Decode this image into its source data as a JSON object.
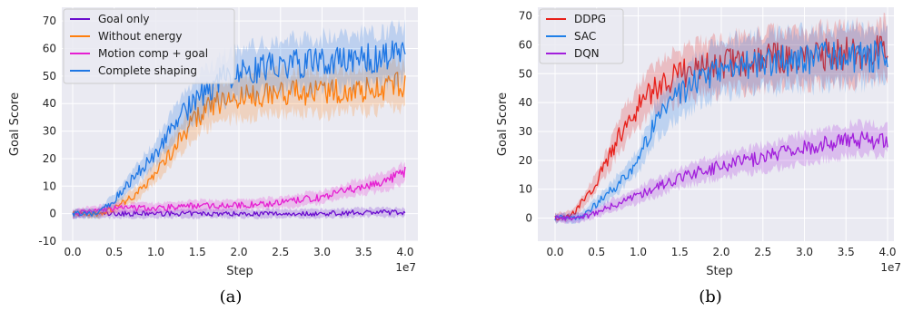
{
  "chart_data": [
    {
      "type": "line",
      "xlabel": "Step",
      "ylabel": "Goal Score",
      "x_exponent_label": "1e7",
      "caption": "(a)",
      "xlim": [
        0,
        4.0
      ],
      "ylim": [
        -10,
        75
      ],
      "x_ticks": [
        "0.0",
        "0.5",
        "1.0",
        "1.5",
        "2.0",
        "2.5",
        "3.0",
        "3.5",
        "4.0"
      ],
      "y_ticks": [
        "-10",
        "0",
        "10",
        "20",
        "30",
        "40",
        "50",
        "60",
        "70"
      ],
      "grid": true,
      "legend_position": "top-left",
      "series": [
        {
          "name": "Goal only",
          "color": "#6a0dce",
          "x": [
            0.0,
            0.5,
            1.0,
            1.5,
            2.0,
            2.5,
            3.0,
            3.5,
            4.0
          ],
          "values": [
            0,
            0,
            0,
            0,
            0,
            0,
            0,
            0.5,
            0.5
          ]
        },
        {
          "name": "Without energy",
          "color": "#ff7f0e",
          "x": [
            0.0,
            0.2,
            0.3,
            0.5,
            0.8,
            1.0,
            1.2,
            1.4,
            1.5,
            1.7,
            2.0,
            2.2,
            2.5,
            3.0,
            3.5,
            4.0
          ],
          "values": [
            0,
            0,
            0,
            2,
            8,
            15,
            23,
            32,
            35,
            40,
            42,
            43,
            44,
            44,
            45,
            47
          ]
        },
        {
          "name": "Motion comp + goal",
          "color": "#e61ed2",
          "x": [
            0.0,
            0.5,
            1.0,
            1.5,
            2.0,
            2.5,
            3.0,
            3.5,
            3.8,
            4.0
          ],
          "values": [
            0,
            2,
            2,
            3,
            3,
            4,
            6,
            10,
            12,
            15
          ]
        },
        {
          "name": "Complete shaping",
          "color": "#1f77e4",
          "x": [
            0.0,
            0.2,
            0.3,
            0.5,
            0.7,
            1.0,
            1.2,
            1.5,
            1.8,
            2.0,
            2.2,
            2.5,
            3.0,
            3.5,
            4.0
          ],
          "values": [
            0,
            0,
            0,
            5,
            12,
            22,
            32,
            42,
            49,
            51,
            52,
            54,
            55,
            56,
            58
          ]
        }
      ]
    },
    {
      "type": "line",
      "xlabel": "Step",
      "ylabel": "Goal Score",
      "x_exponent_label": "1e7",
      "caption": "(b)",
      "xlim": [
        0,
        4.0
      ],
      "ylim": [
        -8,
        73
      ],
      "x_ticks": [
        "0.0",
        "0.5",
        "1.0",
        "1.5",
        "2.0",
        "2.5",
        "3.0",
        "3.5",
        "4.0"
      ],
      "y_ticks": [
        "0",
        "10",
        "20",
        "30",
        "40",
        "50",
        "60",
        "70"
      ],
      "grid": true,
      "legend_position": "top-left",
      "series": [
        {
          "name": "DDPG",
          "color": "#e8201a",
          "x": [
            0.0,
            0.2,
            0.4,
            0.6,
            0.8,
            1.0,
            1.2,
            1.5,
            2.0,
            2.5,
            3.0,
            3.5,
            4.0
          ],
          "values": [
            0,
            1,
            8,
            18,
            30,
            39,
            45,
            50,
            53,
            55,
            56,
            57,
            58
          ]
        },
        {
          "name": "SAC",
          "color": "#1f7fe8",
          "x": [
            0.0,
            0.3,
            0.5,
            0.7,
            1.0,
            1.2,
            1.5,
            1.8,
            2.0,
            2.5,
            3.0,
            3.5,
            4.0
          ],
          "values": [
            0,
            0,
            5,
            10,
            20,
            33,
            43,
            49,
            52,
            54,
            55,
            56,
            56
          ]
        },
        {
          "name": "DQN",
          "color": "#a21fdc",
          "x": [
            0.0,
            0.3,
            0.5,
            1.0,
            1.5,
            2.0,
            2.5,
            3.0,
            3.5,
            4.0
          ],
          "values": [
            0,
            0,
            2,
            8,
            14,
            18,
            21,
            24,
            27,
            27
          ]
        }
      ]
    }
  ]
}
